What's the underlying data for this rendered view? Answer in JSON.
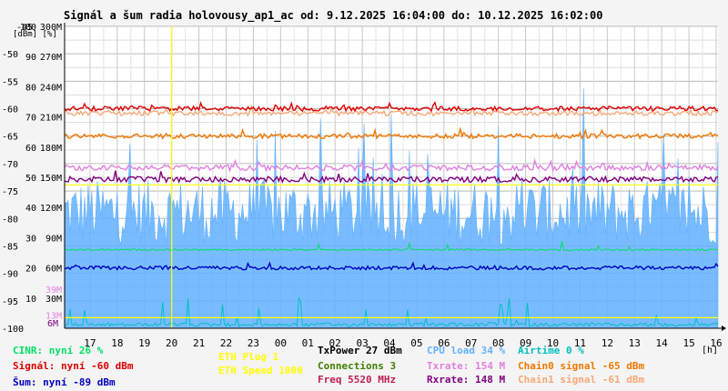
{
  "title": "Signál a šum radia holovousy_ap1_ac od: 9.12.2025 16:04:00 do: 10.12.2025 16:02:00",
  "colors": {
    "background": "#f4f4f4",
    "plot_background": "#ffffff",
    "grid": "#c8c8c8",
    "signal": "#e00000",
    "chain1": "#f8a878",
    "chain0": "#f07800",
    "txrate": "#e080e0",
    "rxrate": "#800080",
    "noise": "#0000c0",
    "cpu": "#60b0ff",
    "airtime": "#00c0c0",
    "eth": "#ffff00",
    "cinr": "#00e060"
  },
  "chart_data": {
    "type": "line",
    "title": "Signál a šum radia holovousy_ap1_ac od: 9.12.2025 16:04:00 do: 10.12.2025 16:02:00",
    "xlabel": "[h]",
    "ylabel": "[dBm] [%]",
    "x_ticks": [
      "17",
      "18",
      "19",
      "20",
      "21",
      "22",
      "23",
      "00",
      "01",
      "02",
      "03",
      "04",
      "05",
      "06",
      "07",
      "08",
      "09",
      "10",
      "11",
      "12",
      "13",
      "14",
      "15",
      "16"
    ],
    "y_ticks_dbm": [
      "-45",
      "-50",
      "-55",
      "-60",
      "-65",
      "-70",
      "-75",
      "-80",
      "-85",
      "-90",
      "-95",
      "-100"
    ],
    "y_ticks_percent": [
      "100",
      "90",
      "80",
      "70",
      "60",
      "50",
      "40",
      "30",
      "20",
      "10",
      "0"
    ],
    "y_ticks_rate": [
      "300M",
      "270M",
      "240M",
      "210M",
      "180M",
      "150M",
      "120M",
      "90M",
      "60M",
      "30M",
      "0"
    ],
    "extra_labels": {
      "left_39M": "39M",
      "left_13M": "13M",
      "left_6M": "6M"
    },
    "ylim_dbm": [
      -100,
      -45
    ],
    "ylim_percent": [
      0,
      100
    ],
    "ylim_rate": [
      0,
      300
    ],
    "grid": true,
    "series": [
      {
        "name": "Signál",
        "unit": "dBm",
        "level": -60,
        "color": "#e00000"
      },
      {
        "name": "Chain1 signal",
        "unit": "dBm",
        "level": -61,
        "color": "#f8a878"
      },
      {
        "name": "Chain0 signal",
        "unit": "dBm",
        "level": -65,
        "color": "#f07800"
      },
      {
        "name": "Txrate",
        "unit": "M",
        "level": 154,
        "color": "#e080e0"
      },
      {
        "name": "Rxrate",
        "unit": "M",
        "level": 148,
        "color": "#800080"
      },
      {
        "name": "Šum",
        "unit": "dBm",
        "level": -89,
        "color": "#0000c0"
      },
      {
        "name": "CPU load",
        "unit": "%",
        "level": 34,
        "color": "#60b0ff"
      },
      {
        "name": "Airtime",
        "unit": "%",
        "level": 0,
        "color": "#00c0c0"
      },
      {
        "name": "CINR",
        "unit": "%",
        "level": 26,
        "color": "#00e060"
      }
    ]
  },
  "legend": {
    "col1": [
      "CINR: nyní 26 %",
      "Signál: nyní -60 dBm",
      "Šum: nyní -89 dBm"
    ],
    "col2": [
      "ETH Plug 1",
      "ETH Speed 1000"
    ],
    "col3": [
      "TxPower 27 dBm",
      "Connections 3",
      "Freq 5520 MHz"
    ],
    "col4": [
      "CPU load 34 %",
      "Txrate: 154 M",
      "Rxrate: 148 M"
    ],
    "col5": [
      "Airtime 0 %",
      "Chain0 signal -65 dBm",
      "Chain1 signal -61 dBm"
    ]
  }
}
